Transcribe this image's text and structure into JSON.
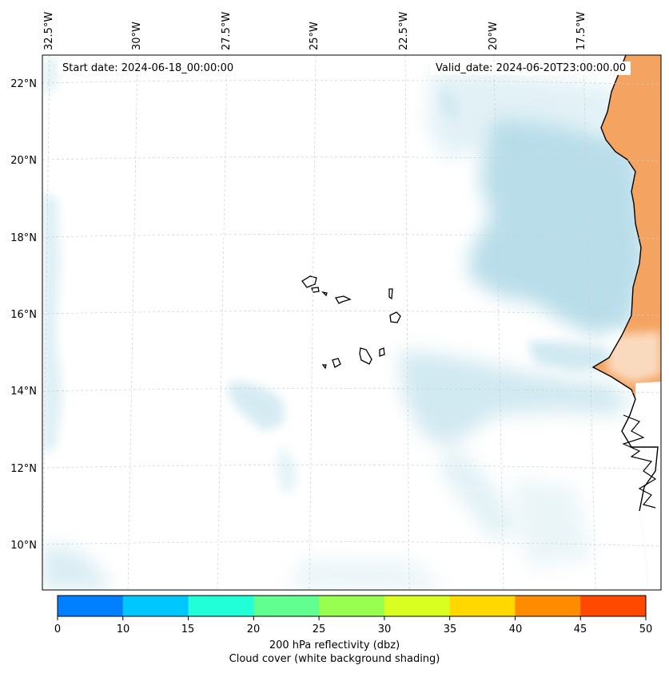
{
  "map": {
    "start_date": "Start date: 2024-06-18_00:00:00",
    "valid_date": "Valid_date: 2024-06-20T23:00:00.00",
    "lon_labels": [
      "32.5°W",
      "30°W",
      "27.5°W",
      "25°W",
      "22.5°W",
      "20°W",
      "17.5°W"
    ],
    "lat_labels": [
      "22°N",
      "20°N",
      "18°N",
      "16°N",
      "14°N",
      "12°N",
      "10°N"
    ],
    "region": "Cape Verde Islands and West African coast",
    "colors": {
      "land": "#F4A460",
      "cloud": "#ADD8E6",
      "coast": "#000000",
      "grid": "#cccccc"
    }
  },
  "colorbar": {
    "ticks": [
      "0",
      "10",
      "15",
      "20",
      "25",
      "30",
      "35",
      "40",
      "45",
      "50"
    ],
    "colors": [
      "#0080FF",
      "#00C8FF",
      "#20FFD8",
      "#60FF90",
      "#98FF50",
      "#D8FF20",
      "#FFD800",
      "#FF8C00",
      "#FF4800"
    ],
    "label": "200 hPa reflectivity (dbz)",
    "sublabel": "Cloud cover (white background shading)"
  }
}
